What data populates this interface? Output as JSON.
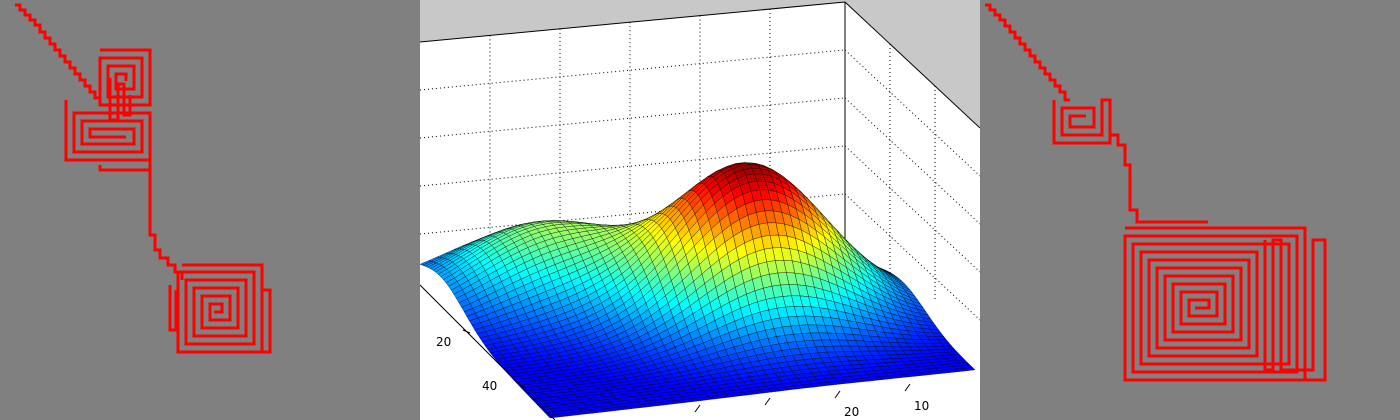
{
  "colors": {
    "background": "#808080",
    "path": "#ff0000",
    "axes_back": "#c8c8c8",
    "pane": "#ffffff",
    "grid": "#000000"
  },
  "chart_data": [
    {
      "type": "line",
      "panel": "left",
      "title": "",
      "series": [
        {
          "role": "path",
          "color": "#ff0000"
        }
      ]
    },
    {
      "type": "surface",
      "panel": "center",
      "title": "",
      "xlabel": "",
      "ylabel": "",
      "zlabel": "",
      "colormap": "jet",
      "grid": true,
      "tick_labels_left_axis": [
        "20",
        "40"
      ],
      "tick_labels_bottom_axis": [
        "20",
        "10"
      ],
      "surface": {
        "description_values": {
          "peaks": [
            {
              "x": 18,
              "y": 22,
              "amplitude": 1.0
            },
            {
              "x": 38,
              "y": 8,
              "amplitude": 0.45
            }
          ]
        }
      }
    },
    {
      "type": "line",
      "panel": "right",
      "title": "",
      "series": [
        {
          "role": "path",
          "color": "#ff0000"
        }
      ]
    }
  ]
}
